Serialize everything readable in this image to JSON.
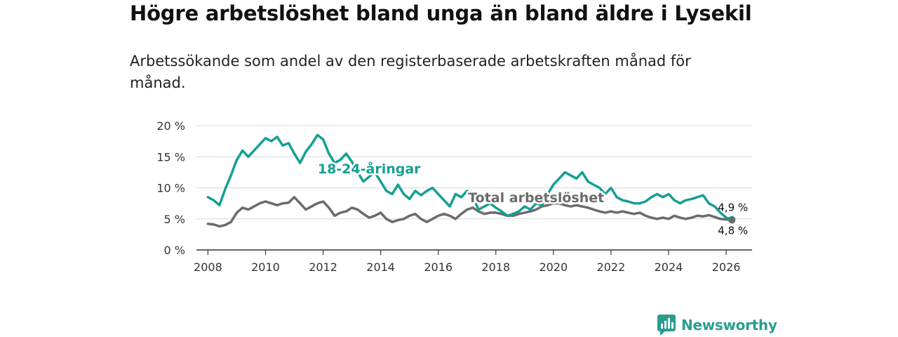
{
  "title": "Högre arbetslöshet bland unga än bland äldre i Lysekil",
  "subtitle": "Arbetssökande som andel av den registerbaserade arbetskraften månad för månad.",
  "logo": {
    "text": "Newsworthy",
    "icon": "newsworthy-logo-icon",
    "color": "#2a9d8f"
  },
  "chart_data": {
    "type": "line",
    "ylim": [
      0,
      20
    ],
    "xlim": [
      2007.6,
      2026.9
    ],
    "y_ticks": [
      {
        "value": 0,
        "label": "0 %"
      },
      {
        "value": 5,
        "label": "5 %"
      },
      {
        "value": 10,
        "label": "10 %"
      },
      {
        "value": 15,
        "label": "15 %"
      },
      {
        "value": 20,
        "label": "20 %"
      }
    ],
    "x_ticks": [
      {
        "value": 2008,
        "label": "2008"
      },
      {
        "value": 2010,
        "label": "2010"
      },
      {
        "value": 2012,
        "label": "2012"
      },
      {
        "value": 2014,
        "label": "2014"
      },
      {
        "value": 2016,
        "label": "2016"
      },
      {
        "value": 2018,
        "label": "2018"
      },
      {
        "value": 2020,
        "label": "2020"
      },
      {
        "value": 2022,
        "label": "2022"
      },
      {
        "value": 2024,
        "label": "2024"
      },
      {
        "value": 2026,
        "label": "2026"
      }
    ],
    "series": [
      {
        "name": "18-24-åringar",
        "color": "#14a092",
        "x": [
          2008.0,
          2008.2,
          2008.4,
          2008.6,
          2008.8,
          2009.0,
          2009.2,
          2009.4,
          2009.6,
          2009.8,
          2010.0,
          2010.2,
          2010.4,
          2010.6,
          2010.8,
          2011.0,
          2011.2,
          2011.4,
          2011.6,
          2011.8,
          2012.0,
          2012.2,
          2012.4,
          2012.6,
          2012.8,
          2013.0,
          2013.2,
          2013.4,
          2013.6,
          2013.8,
          2014.0,
          2014.2,
          2014.4,
          2014.6,
          2014.8,
          2015.0,
          2015.2,
          2015.4,
          2015.6,
          2015.8,
          2016.0,
          2016.2,
          2016.4,
          2016.6,
          2016.8,
          2017.0,
          2017.2,
          2017.4,
          2017.6,
          2017.8,
          2018.0,
          2018.2,
          2018.4,
          2018.6,
          2018.8,
          2019.0,
          2019.2,
          2019.4,
          2019.6,
          2019.8,
          2020.0,
          2020.2,
          2020.4,
          2020.6,
          2020.8,
          2021.0,
          2021.2,
          2021.4,
          2021.6,
          2021.8,
          2022.0,
          2022.2,
          2022.4,
          2022.6,
          2022.8,
          2023.0,
          2023.2,
          2023.4,
          2023.6,
          2023.8,
          2024.0,
          2024.2,
          2024.4,
          2024.6,
          2024.8,
          2025.0,
          2025.2,
          2025.4,
          2025.6,
          2025.8,
          2026.0,
          2026.2
        ],
        "y": [
          8.5,
          8.0,
          7.2,
          9.8,
          12.0,
          14.5,
          16.0,
          15.0,
          16.0,
          17.0,
          18.0,
          17.5,
          18.2,
          16.8,
          17.2,
          15.5,
          14.0,
          15.8,
          17.0,
          18.5,
          17.8,
          15.5,
          14.0,
          14.5,
          15.5,
          14.2,
          12.5,
          11.0,
          11.8,
          12.5,
          11.0,
          9.5,
          9.0,
          10.5,
          9.0,
          8.2,
          9.5,
          8.8,
          9.5,
          10.0,
          9.0,
          8.0,
          7.0,
          9.0,
          8.5,
          9.5,
          8.5,
          6.5,
          7.0,
          7.5,
          6.8,
          6.2,
          5.5,
          5.8,
          6.2,
          7.0,
          6.5,
          7.5,
          7.2,
          9.0,
          10.5,
          11.5,
          12.5,
          12.0,
          11.5,
          12.5,
          11.0,
          10.5,
          10.0,
          9.0,
          10.0,
          8.5,
          8.0,
          7.8,
          7.5,
          7.5,
          7.8,
          8.5,
          9.0,
          8.5,
          9.0,
          8.0,
          7.5,
          8.0,
          8.2,
          8.5,
          8.8,
          7.5,
          7.0,
          6.0,
          5.2,
          4.9
        ]
      },
      {
        "name": "Total arbetslöshet",
        "color": "#6b6b6b",
        "x": [
          2008.0,
          2008.2,
          2008.4,
          2008.6,
          2008.8,
          2009.0,
          2009.2,
          2009.4,
          2009.6,
          2009.8,
          2010.0,
          2010.2,
          2010.4,
          2010.6,
          2010.8,
          2011.0,
          2011.2,
          2011.4,
          2011.6,
          2011.8,
          2012.0,
          2012.2,
          2012.4,
          2012.6,
          2012.8,
          2013.0,
          2013.2,
          2013.4,
          2013.6,
          2013.8,
          2014.0,
          2014.2,
          2014.4,
          2014.6,
          2014.8,
          2015.0,
          2015.2,
          2015.4,
          2015.6,
          2015.8,
          2016.0,
          2016.2,
          2016.4,
          2016.6,
          2016.8,
          2017.0,
          2017.2,
          2017.4,
          2017.6,
          2017.8,
          2018.0,
          2018.2,
          2018.4,
          2018.6,
          2018.8,
          2019.0,
          2019.2,
          2019.4,
          2019.6,
          2019.8,
          2020.0,
          2020.2,
          2020.4,
          2020.6,
          2020.8,
          2021.0,
          2021.2,
          2021.4,
          2021.6,
          2021.8,
          2022.0,
          2022.2,
          2022.4,
          2022.6,
          2022.8,
          2023.0,
          2023.2,
          2023.4,
          2023.6,
          2023.8,
          2024.0,
          2024.2,
          2024.4,
          2024.6,
          2024.8,
          2025.0,
          2025.2,
          2025.4,
          2025.6,
          2025.8,
          2026.0,
          2026.2
        ],
        "y": [
          4.2,
          4.1,
          3.8,
          4.0,
          4.5,
          6.0,
          6.8,
          6.5,
          7.0,
          7.5,
          7.8,
          7.5,
          7.2,
          7.5,
          7.6,
          8.5,
          7.5,
          6.5,
          7.0,
          7.5,
          7.8,
          6.8,
          5.5,
          6.0,
          6.2,
          6.8,
          6.5,
          5.8,
          5.2,
          5.5,
          6.0,
          5.0,
          4.5,
          4.8,
          5.0,
          5.5,
          5.8,
          5.0,
          4.5,
          5.0,
          5.5,
          5.8,
          5.5,
          5.0,
          5.8,
          6.5,
          6.8,
          6.2,
          5.8,
          6.0,
          6.0,
          5.8,
          5.5,
          5.5,
          5.8,
          6.0,
          6.2,
          6.5,
          7.0,
          7.2,
          7.5,
          7.5,
          7.2,
          7.0,
          7.2,
          7.0,
          6.8,
          6.5,
          6.2,
          6.0,
          6.2,
          6.0,
          6.2,
          6.0,
          5.8,
          6.0,
          5.5,
          5.2,
          5.0,
          5.2,
          5.0,
          5.5,
          5.2,
          5.0,
          5.2,
          5.5,
          5.4,
          5.6,
          5.3,
          5.0,
          4.9,
          4.8
        ]
      }
    ],
    "annotations": [
      {
        "text": "18-24-åringar",
        "series": 0,
        "x": 2013.6,
        "y": 12.3
      },
      {
        "text": "Total arbetslöshet",
        "series": 1,
        "x": 2019.4,
        "y": 7.7
      }
    ],
    "end_labels": [
      {
        "text": "4,9 %",
        "series": 0,
        "value": 4.9
      },
      {
        "text": "4,8 %",
        "series": 1,
        "value": 4.8
      }
    ]
  }
}
